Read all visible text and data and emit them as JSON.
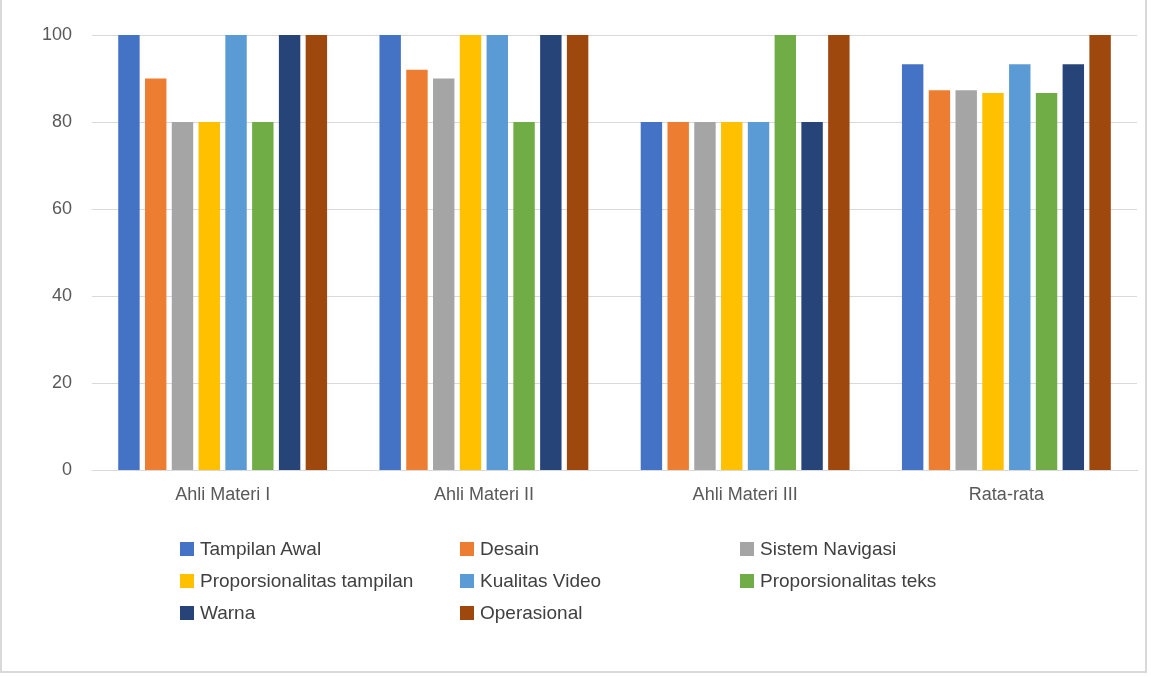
{
  "chart_data": {
    "type": "bar",
    "categories": [
      "Ahli Materi I",
      "Ahli Materi II",
      "Ahli Materi III",
      "Rata-rata"
    ],
    "series": [
      {
        "name": "Tampilan Awal",
        "color": "#4472c4",
        "values": [
          100,
          100,
          80,
          93.3
        ]
      },
      {
        "name": "Desain",
        "color": "#ed7d31",
        "values": [
          90,
          92,
          80,
          87.3
        ]
      },
      {
        "name": "Sistem Navigasi",
        "color": "#a5a5a5",
        "values": [
          80,
          90,
          80,
          87.3
        ]
      },
      {
        "name": "Proporsionalitas tampilan",
        "color": "#ffc000",
        "values": [
          80,
          100,
          80,
          86.7
        ]
      },
      {
        "name": "Kualitas Video",
        "color": "#5b9bd5",
        "values": [
          100,
          100,
          80,
          93.3
        ]
      },
      {
        "name": "Proporsionalitas teks",
        "color": "#70ad47",
        "values": [
          80,
          80,
          100,
          86.7
        ]
      },
      {
        "name": "Warna",
        "color": "#264478",
        "values": [
          100,
          100,
          80,
          93.3
        ]
      },
      {
        "name": "Operasional",
        "color": "#9e480e",
        "values": [
          100,
          100,
          100,
          100
        ]
      }
    ],
    "ylim": [
      0,
      100
    ],
    "yticks": [
      0,
      20,
      40,
      60,
      80,
      100
    ],
    "grid": "y",
    "legend": "bottom"
  }
}
